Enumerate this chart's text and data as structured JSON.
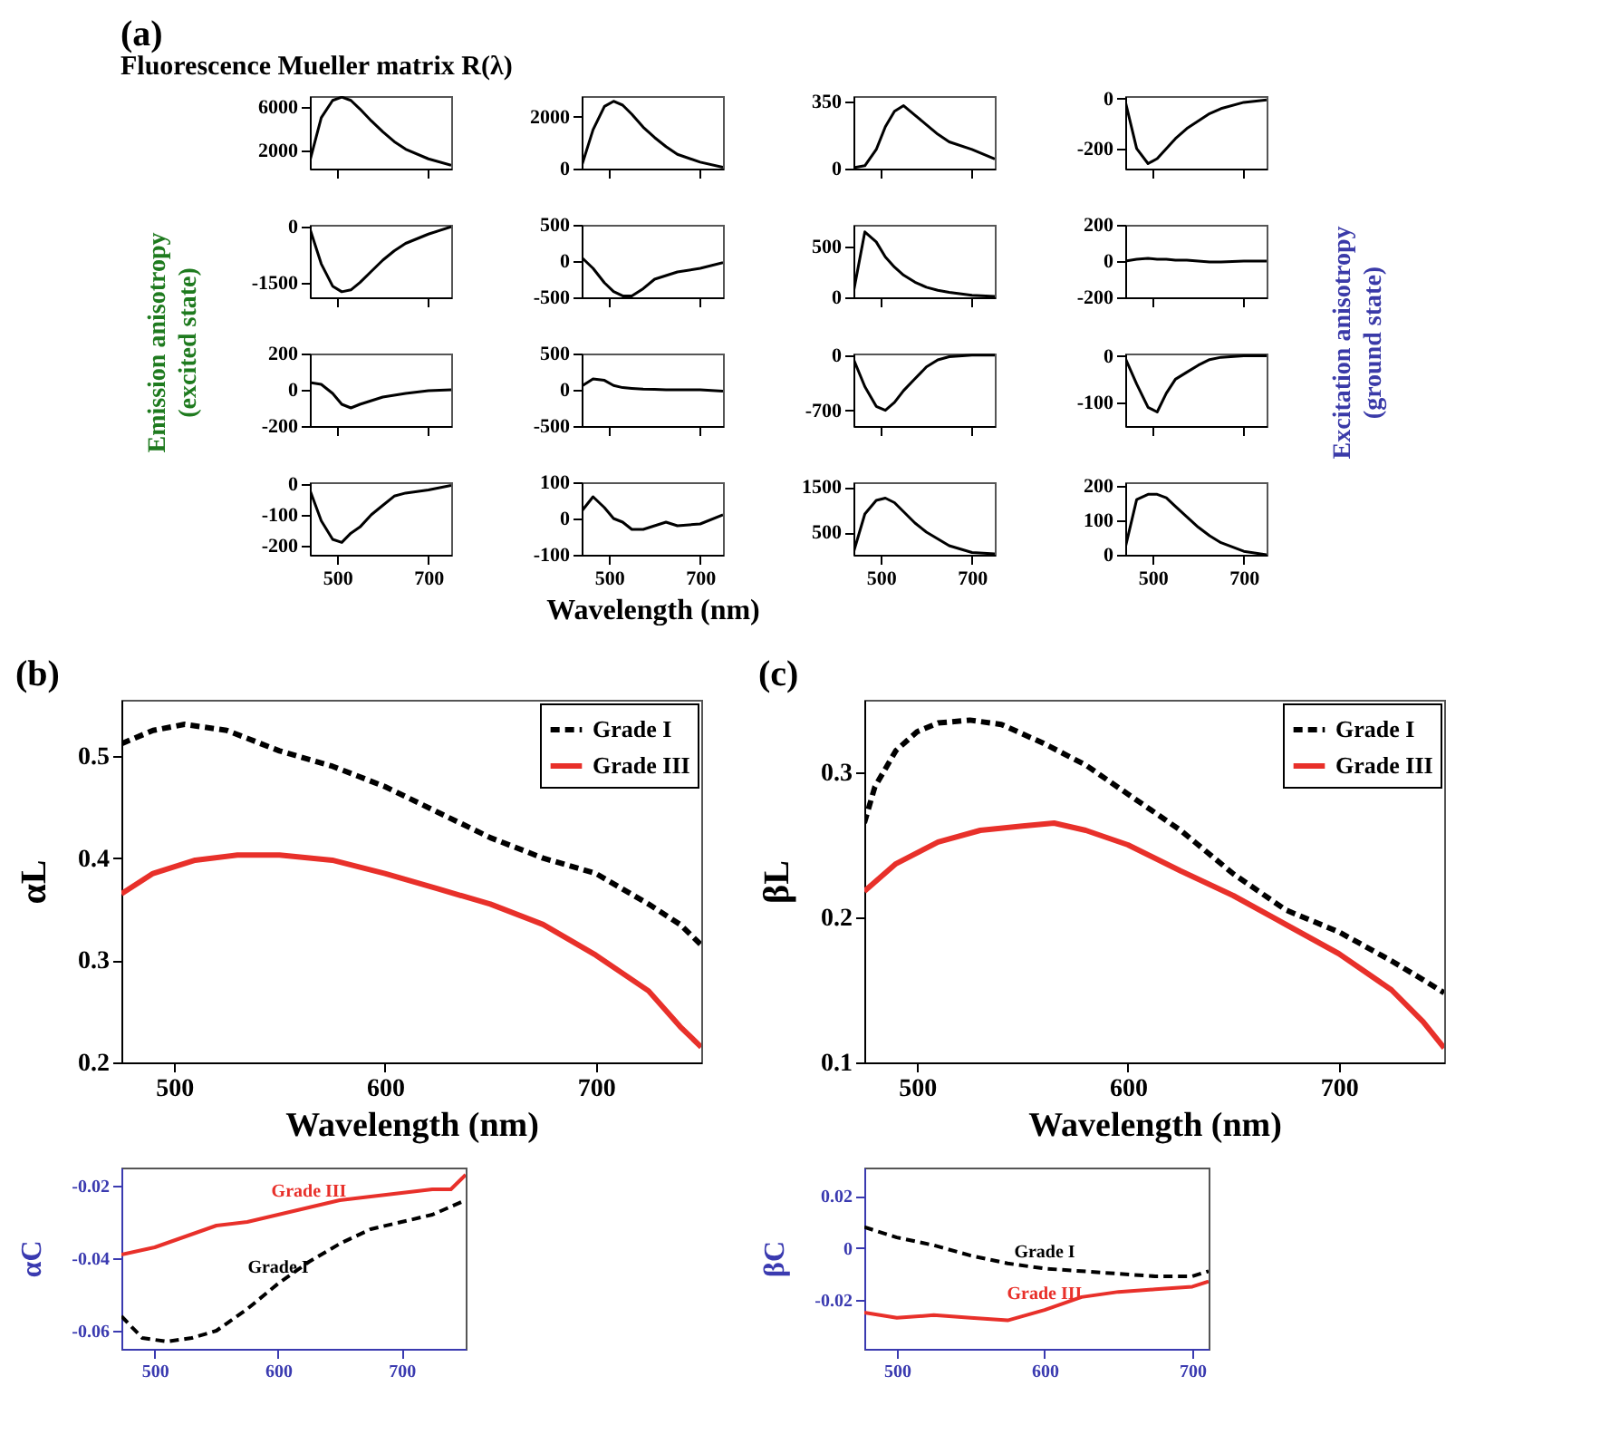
{
  "chart_data": [
    {
      "type": "line",
      "title": "(a)",
      "subtitle": "Fluorescence Mueller matrix R(λ)",
      "x": [
        440,
        465,
        490,
        510,
        530,
        550,
        575,
        600,
        625,
        650,
        700,
        750
      ],
      "values": [
        1000,
        5000,
        6600,
        6900,
        6600,
        5800,
        4700,
        3700,
        2800,
        2100,
        1200,
        600
      ],
      "color": "#000000",
      "xlim": [
        440,
        750
      ],
      "xticks": [
        500,
        700
      ],
      "ylim": [
        300,
        7000
      ],
      "yticks": [
        2000,
        6000
      ],
      "tick_labels": "y"
    },
    {
      "type": "line",
      "x": [
        440,
        465,
        490,
        510,
        530,
        550,
        575,
        600,
        625,
        650,
        700,
        750
      ],
      "values": [
        100,
        1500,
        2400,
        2600,
        2450,
        2100,
        1600,
        1200,
        850,
        550,
        250,
        50
      ],
      "color": "#000000",
      "xlim": [
        440,
        750
      ],
      "xticks": [
        500,
        700
      ],
      "ylim": [
        0,
        2800
      ],
      "yticks": [
        0,
        2000
      ],
      "tick_labels": "y"
    },
    {
      "type": "line",
      "x": [
        440,
        465,
        490,
        510,
        530,
        550,
        575,
        600,
        625,
        650,
        700,
        750
      ],
      "values": [
        5,
        15,
        100,
        220,
        300,
        330,
        280,
        230,
        180,
        140,
        100,
        50
      ],
      "color": "#000000",
      "xlim": [
        440,
        750
      ],
      "xticks": [
        500,
        700
      ],
      "ylim": [
        0,
        380
      ],
      "yticks": [
        0,
        350
      ],
      "tick_labels": "y"
    },
    {
      "type": "line",
      "x": [
        440,
        465,
        490,
        510,
        530,
        550,
        575,
        600,
        625,
        650,
        700,
        750
      ],
      "values": [
        -10,
        -200,
        -260,
        -240,
        -200,
        -160,
        -120,
        -90,
        -60,
        -40,
        -15,
        -5
      ],
      "color": "#000000",
      "xlim": [
        440,
        750
      ],
      "xticks": [
        500,
        700
      ],
      "ylim": [
        -280,
        10
      ],
      "yticks": [
        -200,
        0
      ],
      "tick_labels": "y"
    },
    {
      "type": "line",
      "x": [
        440,
        465,
        490,
        510,
        530,
        550,
        575,
        600,
        625,
        650,
        700,
        750
      ],
      "values": [
        -50,
        -1000,
        -1600,
        -1750,
        -1700,
        -1500,
        -1200,
        -900,
        -650,
        -450,
        -200,
        0
      ],
      "color": "#000000",
      "xlim": [
        440,
        750
      ],
      "xticks": [
        500,
        700
      ],
      "ylim": [
        -1900,
        50
      ],
      "yticks": [
        -1500,
        0
      ],
      "tick_labels": "y"
    },
    {
      "type": "line",
      "x": [
        440,
        465,
        490,
        510,
        530,
        550,
        575,
        600,
        625,
        650,
        700,
        750
      ],
      "values": [
        50,
        -100,
        -300,
        -420,
        -480,
        -480,
        -380,
        -250,
        -200,
        -150,
        -100,
        -20
      ],
      "color": "#000000",
      "xlim": [
        440,
        750
      ],
      "xticks": [
        500,
        700
      ],
      "ylim": [
        -500,
        500
      ],
      "yticks": [
        -500,
        0,
        500
      ],
      "tick_labels": "y"
    },
    {
      "type": "line",
      "x": [
        440,
        465,
        490,
        510,
        530,
        550,
        575,
        600,
        625,
        650,
        700,
        750
      ],
      "values": [
        50,
        650,
        550,
        400,
        300,
        220,
        150,
        100,
        70,
        50,
        20,
        10
      ],
      "color": "#000000",
      "xlim": [
        440,
        750
      ],
      "xticks": [
        500,
        700
      ],
      "ylim": [
        0,
        720
      ],
      "yticks": [
        0,
        500
      ],
      "tick_labels": "y"
    },
    {
      "type": "line",
      "x": [
        440,
        465,
        490,
        510,
        530,
        550,
        575,
        600,
        625,
        650,
        700,
        750
      ],
      "values": [
        0,
        10,
        15,
        10,
        10,
        5,
        5,
        0,
        -5,
        -5,
        0,
        0
      ],
      "color": "#000000",
      "xlim": [
        440,
        750
      ],
      "xticks": [
        500,
        700
      ],
      "ylim": [
        -200,
        200
      ],
      "yticks": [
        -200,
        0,
        200
      ],
      "tick_labels": "y"
    },
    {
      "type": "line",
      "ylabel": [
        "Emission  anisotropy",
        "(excited state)"
      ],
      "x": [
        440,
        465,
        490,
        510,
        530,
        550,
        575,
        600,
        625,
        650,
        700,
        750
      ],
      "values": [
        40,
        30,
        -20,
        -80,
        -100,
        -80,
        -60,
        -40,
        -30,
        -20,
        -5,
        0
      ],
      "color": "#000000",
      "xlim": [
        440,
        750
      ],
      "xticks": [
        500,
        700
      ],
      "ylim": [
        -200,
        200
      ],
      "yticks": [
        -200,
        0,
        200
      ],
      "tick_labels": "y"
    },
    {
      "type": "line",
      "x": [
        440,
        465,
        490,
        510,
        530,
        550,
        575,
        600,
        625,
        650,
        700,
        750
      ],
      "values": [
        50,
        150,
        130,
        60,
        30,
        20,
        10,
        5,
        0,
        0,
        0,
        -20
      ],
      "color": "#000000",
      "xlim": [
        440,
        750
      ],
      "xticks": [
        500,
        700
      ],
      "ylim": [
        -500,
        500
      ],
      "yticks": [
        -500,
        0,
        500
      ],
      "tick_labels": "y"
    },
    {
      "type": "line",
      "x": [
        440,
        465,
        490,
        510,
        530,
        550,
        575,
        600,
        625,
        650,
        700,
        750
      ],
      "values": [
        -50,
        -400,
        -650,
        -700,
        -600,
        -450,
        -300,
        -150,
        -60,
        -20,
        0,
        0
      ],
      "color": "#000000",
      "xlim": [
        440,
        750
      ],
      "xticks": [
        500,
        700
      ],
      "ylim": [
        -900,
        20
      ],
      "yticks": [
        -700,
        0
      ],
      "tick_labels": "y"
    },
    {
      "type": "line",
      "y2label": [
        "Excitation anisotropy",
        "(ground state)"
      ],
      "x": [
        440,
        465,
        490,
        510,
        530,
        550,
        575,
        600,
        625,
        650,
        700,
        750
      ],
      "values": [
        -5,
        -60,
        -110,
        -120,
        -80,
        -50,
        -35,
        -20,
        -8,
        -3,
        0,
        0
      ],
      "color": "#000000",
      "xlim": [
        440,
        750
      ],
      "xticks": [
        500,
        700
      ],
      "ylim": [
        -150,
        5
      ],
      "yticks": [
        -100,
        0
      ],
      "tick_labels": "y"
    },
    {
      "type": "line",
      "x": [
        440,
        465,
        490,
        510,
        530,
        550,
        575,
        600,
        625,
        650,
        700,
        750
      ],
      "values": [
        -20,
        -120,
        -180,
        -190,
        -160,
        -140,
        -100,
        -70,
        -40,
        -30,
        -20,
        -5
      ],
      "color": "#000000",
      "xlim": [
        440,
        750
      ],
      "xticks": [
        500,
        700
      ],
      "ylim": [
        -230,
        5
      ],
      "yticks": [
        -200,
        -100,
        0
      ]
    },
    {
      "type": "line",
      "xlabel": "Wavelength (nm)",
      "x": [
        440,
        465,
        490,
        510,
        530,
        550,
        575,
        600,
        625,
        650,
        700,
        750
      ],
      "values": [
        20,
        60,
        30,
        0,
        -10,
        -30,
        -30,
        -20,
        -10,
        -20,
        -15,
        10
      ],
      "color": "#000000",
      "xlim": [
        440,
        750
      ],
      "xticks": [
        500,
        700
      ],
      "ylim": [
        -100,
        100
      ],
      "yticks": [
        -100,
        0,
        100
      ]
    },
    {
      "type": "line",
      "x": [
        440,
        465,
        490,
        510,
        530,
        550,
        575,
        600,
        625,
        650,
        700,
        750
      ],
      "values": [
        50,
        900,
        1200,
        1250,
        1150,
        950,
        700,
        500,
        350,
        200,
        50,
        20
      ],
      "color": "#000000",
      "xlim": [
        440,
        750
      ],
      "xticks": [
        500,
        700
      ],
      "ylim": [
        0,
        1600
      ],
      "yticks": [
        500,
        1500
      ]
    },
    {
      "type": "line",
      "x": [
        440,
        465,
        490,
        510,
        530,
        550,
        575,
        600,
        625,
        650,
        700,
        750
      ],
      "values": [
        20,
        160,
        175,
        175,
        165,
        140,
        110,
        80,
        55,
        35,
        10,
        0
      ],
      "color": "#000000",
      "xlim": [
        440,
        750
      ],
      "xticks": [
        500,
        700
      ],
      "ylim": [
        0,
        210
      ],
      "yticks": [
        0,
        100,
        200
      ]
    },
    {
      "type": "line",
      "title": "(b)",
      "xlabel": "Wavelength (nm)",
      "ylabel": "αL",
      "xlim": [
        475,
        750
      ],
      "xticks": [
        500,
        600,
        700
      ],
      "ylim": [
        0.2,
        0.555
      ],
      "yticks": [
        0.2,
        0.3,
        0.4,
        0.5
      ],
      "legend": "top right",
      "series": [
        {
          "name": "Grade I",
          "color": "#000000",
          "line_style": "dashed",
          "x": [
            475,
            490,
            505,
            525,
            550,
            575,
            600,
            625,
            650,
            675,
            700,
            725,
            740,
            750
          ],
          "values": [
            0.512,
            0.525,
            0.531,
            0.525,
            0.505,
            0.49,
            0.47,
            0.445,
            0.42,
            0.4,
            0.385,
            0.355,
            0.335,
            0.315
          ]
        },
        {
          "name": "Grade III",
          "color": "#e8302a",
          "line_style": "solid",
          "x": [
            475,
            490,
            510,
            530,
            550,
            575,
            600,
            625,
            650,
            675,
            700,
            725,
            740,
            750
          ],
          "values": [
            0.365,
            0.385,
            0.398,
            0.403,
            0.403,
            0.398,
            0.385,
            0.37,
            0.355,
            0.335,
            0.305,
            0.27,
            0.235,
            0.215
          ]
        }
      ]
    },
    {
      "type": "line",
      "ylabel": "αC",
      "xlim": [
        473,
        752
      ],
      "xticks": [
        500,
        600,
        700
      ],
      "ylim": [
        -0.065,
        -0.015
      ],
      "yticks": [
        -0.06,
        -0.04,
        -0.02
      ],
      "series": [
        {
          "name": "Grade III",
          "color": "#e8302a",
          "line_style": "solid",
          "x": [
            473,
            500,
            525,
            550,
            575,
            600,
            625,
            650,
            675,
            700,
            725,
            740,
            752
          ],
          "values": [
            -0.039,
            -0.037,
            -0.034,
            -0.031,
            -0.03,
            -0.028,
            -0.026,
            -0.024,
            -0.023,
            -0.022,
            -0.021,
            -0.021,
            -0.017
          ]
        },
        {
          "name": "Grade I",
          "color": "#000000",
          "line_style": "dashed",
          "x": [
            473,
            490,
            510,
            530,
            550,
            575,
            600,
            625,
            650,
            675,
            700,
            725,
            752
          ],
          "values": [
            -0.056,
            -0.062,
            -0.063,
            -0.062,
            -0.06,
            -0.054,
            -0.047,
            -0.041,
            -0.036,
            -0.032,
            -0.03,
            -0.028,
            -0.024
          ]
        }
      ]
    },
    {
      "type": "line",
      "title": "(c)",
      "xlabel": "Wavelength (nm)",
      "ylabel": "βL",
      "xlim": [
        475,
        750
      ],
      "xticks": [
        500,
        600,
        700
      ],
      "ylim": [
        0.1,
        0.35
      ],
      "yticks": [
        0.1,
        0.2,
        0.3
      ],
      "legend": "top right",
      "series": [
        {
          "name": "Grade I",
          "color": "#000000",
          "line_style": "dashed",
          "x": [
            475,
            480,
            490,
            500,
            510,
            525,
            540,
            560,
            580,
            600,
            625,
            650,
            675,
            700,
            725,
            740,
            750
          ],
          "values": [
            0.265,
            0.29,
            0.315,
            0.328,
            0.334,
            0.336,
            0.333,
            0.32,
            0.305,
            0.285,
            0.26,
            0.23,
            0.205,
            0.19,
            0.17,
            0.157,
            0.148
          ]
        },
        {
          "name": "Grade III",
          "color": "#e8302a",
          "line_style": "solid",
          "x": [
            475,
            490,
            510,
            530,
            550,
            565,
            580,
            600,
            625,
            650,
            675,
            700,
            725,
            740,
            750
          ],
          "values": [
            0.218,
            0.237,
            0.252,
            0.26,
            0.263,
            0.265,
            0.26,
            0.25,
            0.232,
            0.215,
            0.195,
            0.175,
            0.15,
            0.128,
            0.11
          ]
        }
      ]
    },
    {
      "type": "line",
      "ylabel": "βC",
      "xlim": [
        478,
        711
      ],
      "xticks": [
        500,
        600,
        700
      ],
      "ylim": [
        -0.039,
        0.031
      ],
      "yticks": [
        -0.02,
        0,
        0.02
      ],
      "series": [
        {
          "name": "Grade I",
          "color": "#000000",
          "line_style": "dashed",
          "x": [
            478,
            500,
            525,
            550,
            575,
            600,
            625,
            650,
            675,
            700,
            711
          ],
          "values": [
            0.008,
            0.004,
            0.001,
            -0.003,
            -0.006,
            -0.008,
            -0.009,
            -0.01,
            -0.011,
            -0.011,
            -0.009
          ]
        },
        {
          "name": "Grade III",
          "color": "#e8302a",
          "line_style": "solid",
          "x": [
            478,
            500,
            525,
            550,
            575,
            600,
            625,
            650,
            675,
            700,
            711
          ],
          "values": [
            -0.025,
            -0.027,
            -0.026,
            -0.027,
            -0.028,
            -0.024,
            -0.019,
            -0.017,
            -0.016,
            -0.015,
            -0.013
          ]
        }
      ]
    }
  ]
}
